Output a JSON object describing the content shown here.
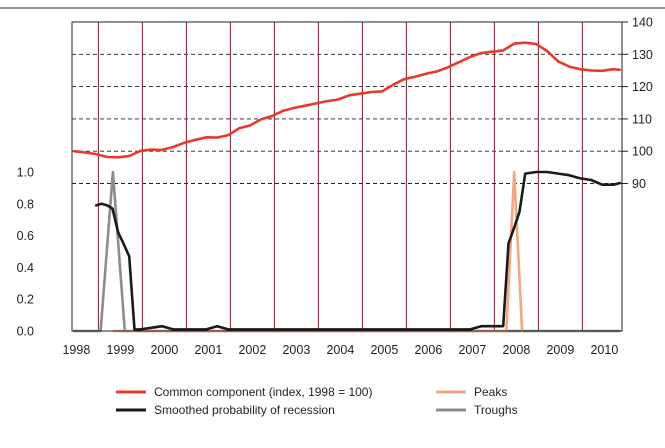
{
  "chart_data": {
    "type": "line",
    "title": "",
    "xlabel": "",
    "x_categories": [
      "1998",
      "1999",
      "2000",
      "2001",
      "2002",
      "2003",
      "2004",
      "2005",
      "2006",
      "2007",
      "2008",
      "2009",
      "2010"
    ],
    "x_range": [
      1997.95,
      2010.45
    ],
    "y_left": {
      "range": [
        0.0,
        1.0
      ],
      "ticks": [
        "0.0",
        "0.2",
        "0.4",
        "0.6",
        "0.8",
        "1.0"
      ]
    },
    "y_right": {
      "range": [
        90,
        140
      ],
      "ticks": [
        "90",
        "100",
        "110",
        "120",
        "130",
        "140"
      ]
    },
    "grid": "dashed horizontal at right-axis ticks; vertical lines at year boundaries",
    "legend_position": "bottom",
    "series": [
      {
        "name": "Common component (index, 1998 = 100)",
        "axis": "right",
        "color": "#e8392d",
        "x": [
          1998.0,
          1998.25,
          1998.5,
          1998.75,
          1999.0,
          1999.25,
          1999.5,
          1999.75,
          2000.0,
          2000.25,
          2000.5,
          2000.75,
          2001.0,
          2001.25,
          2001.5,
          2001.75,
          2002.0,
          2002.25,
          2002.5,
          2002.75,
          2003.0,
          2003.25,
          2003.5,
          2003.75,
          2004.0,
          2004.25,
          2004.5,
          2004.75,
          2005.0,
          2005.25,
          2005.5,
          2005.75,
          2006.0,
          2006.25,
          2006.5,
          2006.75,
          2007.0,
          2007.25,
          2007.5,
          2007.75,
          2008.0,
          2008.25,
          2008.5,
          2008.75,
          2009.0,
          2009.25,
          2009.5,
          2009.75,
          2010.0,
          2010.25,
          2010.4
        ],
        "values": [
          100,
          99.6,
          99.1,
          98.2,
          98.1,
          98.5,
          100.1,
          100.5,
          100.4,
          101.3,
          102.6,
          103.5,
          104.3,
          104.2,
          105.0,
          107.1,
          108.0,
          109.9,
          110.9,
          112.5,
          113.4,
          114.1,
          114.8,
          115.5,
          116.0,
          117.3,
          117.8,
          118.3,
          118.5,
          120.6,
          122.3,
          123.1,
          124.0,
          124.7,
          126.0,
          127.6,
          129.2,
          130.4,
          130.8,
          131.2,
          133.3,
          133.6,
          133.2,
          131.0,
          127.8,
          126.2,
          125.4,
          125.0,
          124.9,
          125.4,
          125.2
        ]
      },
      {
        "name": "Smoothed probability of recession",
        "axis": "left",
        "color": "#1a1a1a",
        "x": [
          1998.5,
          1998.62,
          1998.75,
          1998.87,
          1999.0,
          1999.12,
          1999.25,
          1999.37,
          1999.5,
          1999.75,
          2000.0,
          2000.25,
          2000.5,
          2000.75,
          2001.0,
          2001.25,
          2001.5,
          2001.75,
          2002.0,
          2002.5,
          2003.0,
          2003.5,
          2004.0,
          2004.5,
          2005.0,
          2005.5,
          2006.0,
          2006.5,
          2007.0,
          2007.25,
          2007.5,
          2007.62,
          2007.75,
          2007.87,
          2008.0,
          2008.12,
          2008.25,
          2008.5,
          2008.75,
          2009.0,
          2009.25,
          2009.5,
          2009.75,
          2010.0,
          2010.25,
          2010.4
        ],
        "values": [
          0.79,
          0.8,
          0.79,
          0.77,
          0.62,
          0.55,
          0.47,
          0.01,
          0.01,
          0.02,
          0.03,
          0.01,
          0.01,
          0.01,
          0.01,
          0.03,
          0.01,
          0.01,
          0.01,
          0.01,
          0.01,
          0.01,
          0.01,
          0.01,
          0.01,
          0.01,
          0.01,
          0.01,
          0.01,
          0.03,
          0.03,
          0.03,
          0.03,
          0.55,
          0.65,
          0.75,
          0.99,
          1.0,
          1.0,
          0.99,
          0.98,
          0.96,
          0.95,
          0.92,
          0.92,
          0.93
        ]
      },
      {
        "name": "Peaks",
        "axis": "left",
        "color": "#f4a582",
        "x": [
          1998.9,
          1999.08,
          1999.25,
          1999.43,
          2007.82,
          2008.0,
          2008.18
        ],
        "values": [
          0,
          0,
          0,
          0,
          0,
          1.0,
          0
        ]
      },
      {
        "name": "Troughs",
        "axis": "left",
        "color": "#8c8c8c",
        "x": [
          1998.0,
          1998.6,
          1998.88,
          1999.15,
          2007.5,
          2010.4
        ],
        "values": [
          0,
          0,
          1.0,
          0,
          0,
          0
        ]
      }
    ]
  }
}
